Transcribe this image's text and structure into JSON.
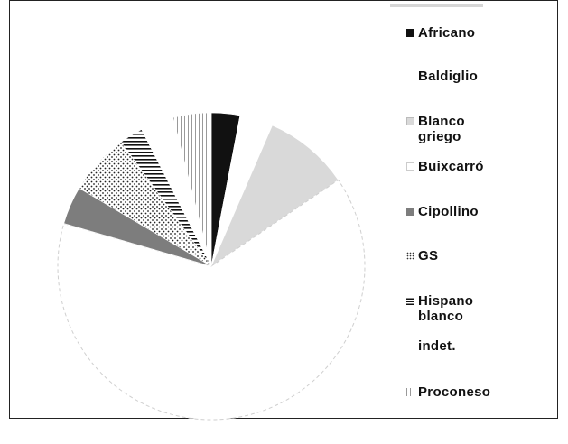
{
  "chart_data": {
    "type": "pie",
    "title": "",
    "legend_position": "right",
    "slices": [
      {
        "label": "Africano",
        "value": 3.0,
        "fill": "#111111",
        "pattern": "solid"
      },
      {
        "label": "Baldiglio",
        "value": 3.5,
        "fill": "#ffffff",
        "pattern": "none"
      },
      {
        "label": "Blanco griego",
        "value": 9.0,
        "fill": "#d9d9d9",
        "pattern": "solid"
      },
      {
        "label": "Buixcarró",
        "value": 64.0,
        "fill": "#ffffff",
        "pattern": "outline"
      },
      {
        "label": "Cipollino",
        "value": 4.0,
        "fill": "#7d7d7d",
        "pattern": "solid"
      },
      {
        "label": "GS",
        "value": 6.5,
        "fill": "#ffffff",
        "pattern": "dots"
      },
      {
        "label": "Hispano blanco",
        "value": 2.5,
        "fill": "#ffffff",
        "pattern": "hlines"
      },
      {
        "label": "indet.",
        "value": 3.5,
        "fill": "#ffffff",
        "pattern": "none"
      },
      {
        "label": "Proconeso",
        "value": 4.0,
        "fill": "#ffffff",
        "pattern": "vlines"
      }
    ]
  },
  "legend": {
    "items": [
      {
        "label": "Africano",
        "swatch": "solid-black"
      },
      {
        "label": "Baldiglio",
        "swatch": "none"
      },
      {
        "label": "Blanco\ngriego",
        "swatch": "light-gray"
      },
      {
        "label": "Buixcarró",
        "swatch": "white-outline"
      },
      {
        "label": "Cipollino",
        "swatch": "gray"
      },
      {
        "label": "GS",
        "swatch": "dots"
      },
      {
        "label": "Hispano\nblanco",
        "swatch": "hlines"
      },
      {
        "label": "indet.",
        "swatch": "none"
      },
      {
        "label": "Proconeso",
        "swatch": "vlines"
      }
    ]
  }
}
